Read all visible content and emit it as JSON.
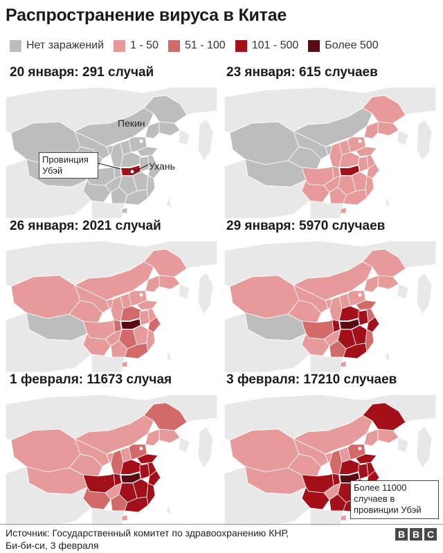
{
  "title": "Распространение вируса в Китае",
  "legend": {
    "items": [
      {
        "label": "Нет заражений",
        "color": "#bdbdbd"
      },
      {
        "label": "1 - 50",
        "color": "#e79a9a"
      },
      {
        "label": "51 - 100",
        "color": "#d26a6a"
      },
      {
        "label": "101 - 500",
        "color": "#a3101a"
      },
      {
        "label": "Более 500",
        "color": "#5a0a10"
      }
    ]
  },
  "colors": {
    "sea": "#ffffff",
    "other_land": "#e8e8e8",
    "border": "#ffffff",
    "hubei_outline": "#ffffff"
  },
  "panels": [
    {
      "title": "20 января: 291 случай",
      "stage": 0
    },
    {
      "title": "23 января: 615 случаев",
      "stage": 1
    },
    {
      "title": "26 января: 2021 случай",
      "stage": 2
    },
    {
      "title": "29 января: 5970 случаев",
      "stage": 3
    },
    {
      "title": "1 февраля: 11673 случая",
      "stage": 4
    },
    {
      "title": "3 февраля: 17210 случаев",
      "stage": 5
    }
  ],
  "annotations": {
    "beijing": "Пекин",
    "wuhan": "Ухань",
    "hubei_line1": "Провинция",
    "hubei_line2": "Убэй",
    "callout_line1": "Более 11000",
    "callout_line2": "случаев в",
    "callout_line3": "провинции Убэй"
  },
  "source": {
    "line1": "Источник: Государственный комитет по здравоохранению КНР,",
    "line2": "Би-би-си, 3 февраля"
  },
  "logo": [
    "B",
    "B",
    "C"
  ]
}
